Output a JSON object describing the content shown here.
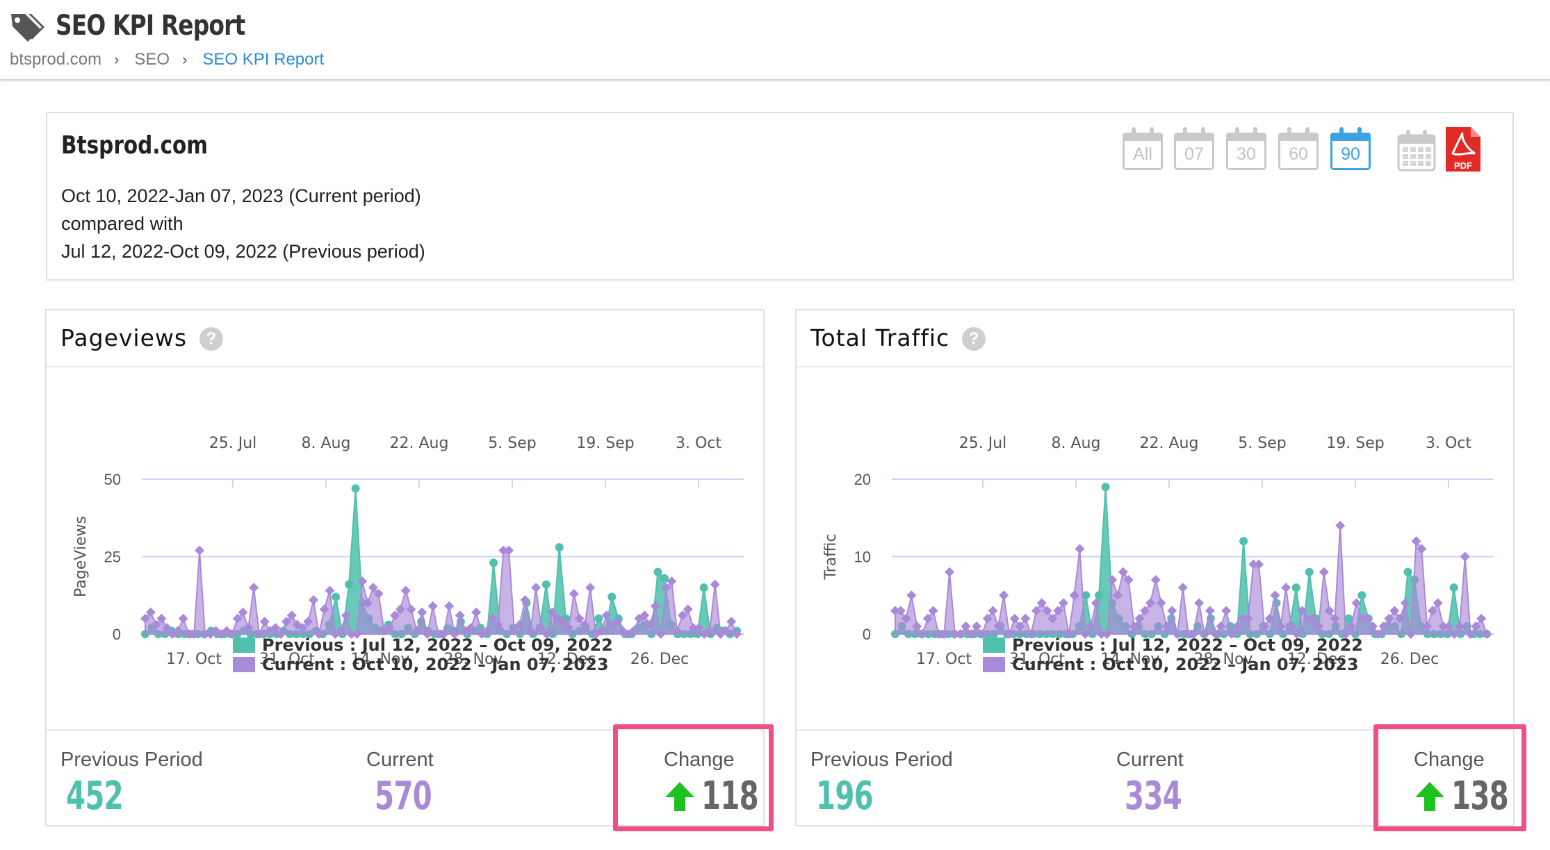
{
  "header": {
    "title": "SEO KPI Report",
    "breadcrumb": [
      "btsprod.com",
      "SEO",
      "SEO KPI Report"
    ]
  },
  "period": {
    "site": "Btsprod.com",
    "current": "Oct 10, 2022-Jan 07, 2023 (Current period)",
    "compared": "compared with",
    "previous": "Jul 12, 2022-Oct 09, 2022 (Previous period)",
    "ranges": [
      {
        "label": "All",
        "active": false
      },
      {
        "label": "07",
        "active": false
      },
      {
        "label": "30",
        "active": false
      },
      {
        "label": "60",
        "active": false
      },
      {
        "label": "90",
        "active": true
      }
    ],
    "pdf_label": "PDF",
    "accent_color": "#3aa3e3"
  },
  "cards": [
    {
      "title": "Pageviews",
      "help": "?",
      "footer": {
        "previous_label": "Previous Period",
        "previous_value": "452",
        "current_label": "Current",
        "current_value": "570",
        "change_label": "Change",
        "change_value": "118",
        "change_direction": "up"
      }
    },
    {
      "title": "Total Traffic",
      "help": "?",
      "footer": {
        "previous_label": "Previous Period",
        "previous_value": "196",
        "current_label": "Current",
        "current_value": "334",
        "change_label": "Change",
        "change_value": "138",
        "change_direction": "up"
      }
    }
  ],
  "chart_data": [
    {
      "type": "area",
      "ylabel": "PageViews",
      "ylim": [
        0,
        50
      ],
      "yticks": [
        0,
        25,
        50
      ],
      "x_top_ticks": [
        "25. Jul",
        "8. Aug",
        "22. Aug",
        "5. Sep",
        "19. Sep",
        "3. Oct"
      ],
      "x_bottom_ticks": [
        "17. Oct",
        "31. Oct",
        "14. Nov",
        "28. Nov",
        "12. Dec",
        "26. Dec"
      ],
      "grid": true,
      "legend_position": "bottom",
      "series": [
        {
          "name": "Previous : Jul 12, 2022 – Oct 09, 2022",
          "color": "#4fc0ad",
          "values": [
            0,
            2,
            0,
            0,
            1,
            0,
            0,
            0,
            0,
            0,
            1,
            0,
            0,
            0,
            0,
            1,
            0,
            0,
            0,
            0,
            0,
            1,
            0,
            0,
            0,
            0,
            1,
            0,
            3,
            12,
            0,
            16,
            47,
            10,
            5,
            2,
            1,
            3,
            0,
            0,
            2,
            0,
            4,
            1,
            0,
            0,
            2,
            1,
            4,
            0,
            1,
            2,
            0,
            23,
            1,
            0,
            2,
            0,
            10,
            0,
            2,
            16,
            0,
            28,
            5,
            0,
            1,
            2,
            0,
            5,
            1,
            12,
            5,
            0,
            0,
            2,
            3,
            0,
            20,
            18,
            3,
            0,
            0,
            0,
            0,
            15,
            0,
            2,
            1,
            0,
            1
          ]
        },
        {
          "name": "Current : Oct 10, 2022 – Jan 07, 2023",
          "color": "#a98ad9",
          "values": [
            5,
            7,
            3,
            5,
            2,
            0,
            1,
            5,
            0,
            0,
            27,
            0,
            0,
            1,
            0,
            1,
            0,
            5,
            7,
            2,
            15,
            0,
            4,
            1,
            2,
            0,
            4,
            6,
            3,
            2,
            4,
            11,
            0,
            8,
            14,
            0,
            1,
            6,
            0,
            0,
            17,
            10,
            15,
            13,
            1,
            2,
            6,
            8,
            14,
            8,
            1,
            7,
            0,
            9,
            0,
            0,
            9,
            0,
            6,
            1,
            2,
            7,
            0,
            1,
            5,
            3,
            27,
            27,
            1,
            3,
            11,
            1,
            15,
            2,
            0,
            7,
            5,
            4,
            2,
            13,
            5,
            3,
            15,
            0,
            1,
            6,
            3,
            4,
            1,
            0,
            1,
            5,
            6,
            3,
            9,
            0,
            15,
            17,
            1,
            6,
            8,
            2,
            2,
            0,
            1,
            16,
            0,
            1,
            4,
            0
          ]
        }
      ]
    },
    {
      "type": "area",
      "ylabel": "Traffic",
      "ylim": [
        0,
        20
      ],
      "yticks": [
        0,
        10,
        20
      ],
      "x_top_ticks": [
        "25. Jul",
        "8. Aug",
        "22. Aug",
        "5. Sep",
        "19. Sep",
        "3. Oct"
      ],
      "x_bottom_ticks": [
        "17. Oct",
        "31. Oct",
        "14. Nov",
        "28. Nov",
        "12. Dec",
        "26. Dec"
      ],
      "grid": true,
      "legend_position": "bottom",
      "series": [
        {
          "name": "Previous : Jul 12, 2022 – Oct 09, 2022",
          "color": "#4fc0ad",
          "values": [
            0,
            1,
            0,
            0,
            0,
            0,
            0,
            0,
            0,
            0,
            0,
            0,
            0,
            0,
            0,
            0,
            1,
            0,
            0,
            0,
            0,
            0,
            0,
            0,
            0,
            0,
            0,
            0,
            1,
            5,
            0,
            5,
            19,
            4,
            2,
            1,
            0,
            1,
            0,
            0,
            1,
            0,
            2,
            0,
            0,
            0,
            1,
            0,
            2,
            0,
            0,
            1,
            0,
            12,
            0,
            0,
            1,
            0,
            4,
            0,
            1,
            6,
            0,
            8,
            2,
            0,
            0,
            1,
            0,
            2,
            0,
            5,
            2,
            0,
            0,
            1,
            1,
            0,
            8,
            7,
            1,
            0,
            0,
            0,
            0,
            6,
            0,
            1,
            0,
            0,
            0
          ]
        },
        {
          "name": "Current : Oct 10, 2022 – Jan 07, 2023",
          "color": "#a98ad9",
          "values": [
            3,
            3,
            2,
            5,
            1,
            0,
            2,
            3,
            0,
            0,
            8,
            0,
            0,
            1,
            0,
            1,
            0,
            2,
            3,
            1,
            5,
            0,
            2,
            1,
            2,
            0,
            3,
            4,
            3,
            2,
            3,
            4,
            0,
            5,
            11,
            0,
            1,
            4,
            0,
            0,
            7,
            5,
            8,
            7,
            1,
            2,
            3,
            4,
            7,
            4,
            1,
            3,
            0,
            6,
            0,
            0,
            4,
            0,
            3,
            0,
            1,
            3,
            0,
            1,
            2,
            2,
            9,
            9,
            1,
            2,
            5,
            1,
            6,
            1,
            0,
            3,
            2,
            2,
            1,
            8,
            3,
            2,
            14,
            0,
            1,
            4,
            2,
            2,
            1,
            0,
            1,
            2,
            3,
            2,
            4,
            0,
            12,
            11,
            1,
            3,
            4,
            1,
            1,
            0,
            1,
            10,
            0,
            1,
            2,
            0
          ]
        }
      ]
    }
  ]
}
